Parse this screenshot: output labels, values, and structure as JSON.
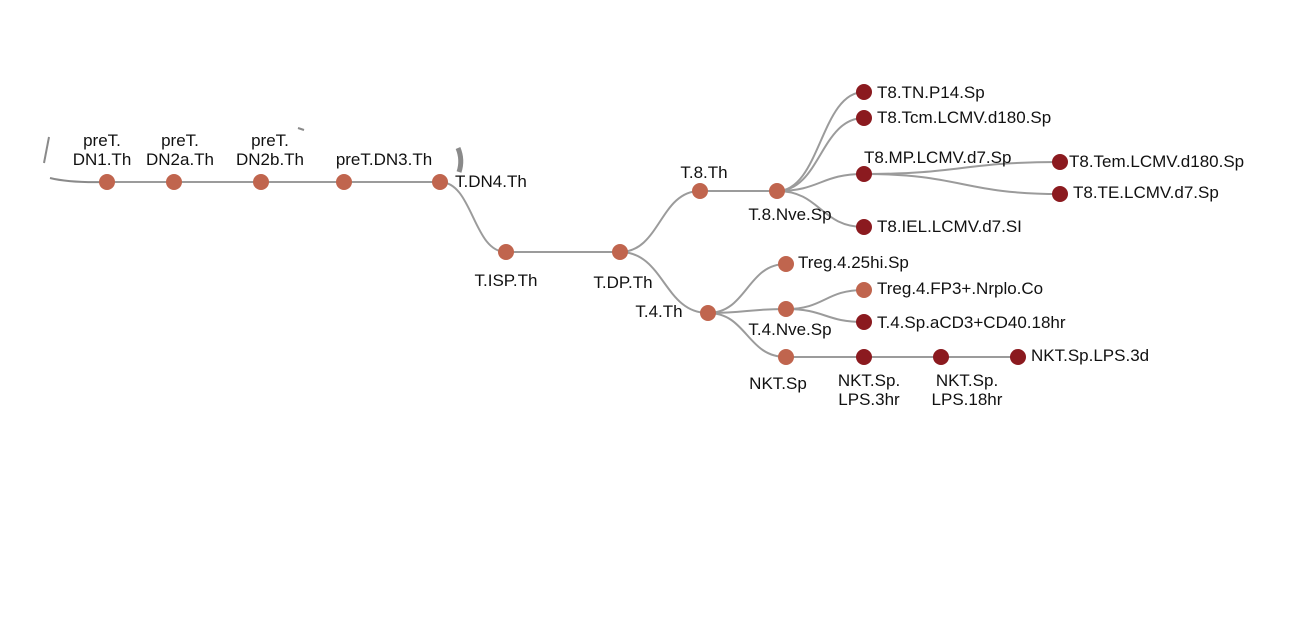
{
  "colors": {
    "progenitor": "#c0654e",
    "effector": "#8b1a1f",
    "edge": "#9b9b9b",
    "text": "#111111"
  },
  "nodes": [
    {
      "id": "dn1",
      "lines": [
        "preT.",
        "DN1.Th"
      ],
      "kind": "progenitor"
    },
    {
      "id": "dn2a",
      "lines": [
        "preT.",
        "DN2a.Th"
      ],
      "kind": "progenitor"
    },
    {
      "id": "dn2b",
      "lines": [
        "preT.",
        "DN2b.Th"
      ],
      "kind": "progenitor"
    },
    {
      "id": "dn3",
      "lines": [
        "preT.DN3.Th"
      ],
      "kind": "progenitor"
    },
    {
      "id": "dn4",
      "lines": [
        "T.DN4.Th"
      ],
      "kind": "progenitor"
    },
    {
      "id": "isp",
      "lines": [
        "T.ISP.Th"
      ],
      "kind": "progenitor"
    },
    {
      "id": "dp",
      "lines": [
        "T.DP.Th"
      ],
      "kind": "progenitor"
    },
    {
      "id": "t8",
      "lines": [
        "T.8.Th"
      ],
      "kind": "progenitor"
    },
    {
      "id": "t8nve",
      "lines": [
        "T.8.Nve.Sp"
      ],
      "kind": "progenitor"
    },
    {
      "id": "tnp14",
      "lines": [
        "T8.TN.P14.Sp"
      ],
      "kind": "effector"
    },
    {
      "id": "tcm",
      "lines": [
        "T8.Tcm.LCMV.d180.Sp"
      ],
      "kind": "effector"
    },
    {
      "id": "mp",
      "lines": [
        "T8.MP.LCMV.d7.Sp"
      ],
      "kind": "effector"
    },
    {
      "id": "tem",
      "lines": [
        "T8.Tem.LCMV.d180.Sp"
      ],
      "kind": "effector"
    },
    {
      "id": "te",
      "lines": [
        "T8.TE.LCMV.d7.Sp"
      ],
      "kind": "effector"
    },
    {
      "id": "iel",
      "lines": [
        "T8.IEL.LCMV.d7.SI"
      ],
      "kind": "effector"
    },
    {
      "id": "t4",
      "lines": [
        "T.4.Th"
      ],
      "kind": "progenitor"
    },
    {
      "id": "treg25",
      "lines": [
        "Treg.4.25hi.Sp"
      ],
      "kind": "progenitor"
    },
    {
      "id": "t4nve",
      "lines": [
        "T.4.Nve.Sp"
      ],
      "kind": "progenitor"
    },
    {
      "id": "tregfp",
      "lines": [
        "Treg.4.FP3+.Nrplo.Co"
      ],
      "kind": "progenitor"
    },
    {
      "id": "t4cd3",
      "lines": [
        "T.4.Sp.aCD3+CD40.18hr"
      ],
      "kind": "effector"
    },
    {
      "id": "nkt",
      "lines": [
        "NKT.Sp"
      ],
      "kind": "progenitor"
    },
    {
      "id": "nkt3h",
      "lines": [
        "NKT.Sp.",
        "LPS.3hr"
      ],
      "kind": "effector"
    },
    {
      "id": "nkt18h",
      "lines": [
        "NKT.Sp.",
        "LPS.18hr"
      ],
      "kind": "effector"
    },
    {
      "id": "nkt3d",
      "lines": [
        "NKT.Sp.LPS.3d"
      ],
      "kind": "effector"
    }
  ],
  "edges": [
    [
      "dn1",
      "dn2a"
    ],
    [
      "dn2a",
      "dn2b"
    ],
    [
      "dn2b",
      "dn3"
    ],
    [
      "dn3",
      "dn4"
    ],
    [
      "dn4",
      "isp"
    ],
    [
      "isp",
      "dp"
    ],
    [
      "dp",
      "t8"
    ],
    [
      "t8",
      "t8nve"
    ],
    [
      "t8nve",
      "tnp14"
    ],
    [
      "t8nve",
      "tcm"
    ],
    [
      "t8nve",
      "mp"
    ],
    [
      "t8nve",
      "iel"
    ],
    [
      "mp",
      "tem"
    ],
    [
      "mp",
      "te"
    ],
    [
      "dp",
      "t4"
    ],
    [
      "t4",
      "treg25"
    ],
    [
      "t4",
      "t4nve"
    ],
    [
      "t4",
      "nkt"
    ],
    [
      "t4nve",
      "tregfp"
    ],
    [
      "t4nve",
      "t4cd3"
    ],
    [
      "nkt",
      "nkt3h"
    ],
    [
      "nkt3h",
      "nkt18h"
    ],
    [
      "nkt18h",
      "nkt3d"
    ]
  ]
}
